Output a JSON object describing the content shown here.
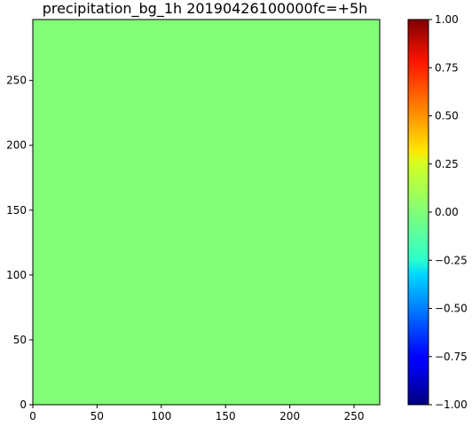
{
  "chart_data": {
    "type": "heatmap",
    "title": "precipitation_bg_1h 20190426100000fc=+5h",
    "xlabel": "",
    "ylabel": "",
    "xlim": [
      0,
      270
    ],
    "ylim": [
      0,
      297
    ],
    "x_ticks": [
      0,
      50,
      100,
      150,
      200,
      250
    ],
    "y_ticks": [
      0,
      50,
      100,
      150,
      200,
      250
    ],
    "field_value": 0.0,
    "field_color": "#80ff77",
    "colorbar": {
      "colormap": "jet",
      "range": [
        -1.0,
        1.0
      ],
      "ticks": [
        -1.0,
        -0.75,
        -0.5,
        -0.25,
        0.0,
        0.25,
        0.5,
        0.75,
        1.0
      ],
      "tick_labels": [
        "−1.00",
        "−0.75",
        "−0.50",
        "−0.25",
        "0.00",
        "0.25",
        "0.50",
        "0.75",
        "1.00"
      ]
    }
  }
}
